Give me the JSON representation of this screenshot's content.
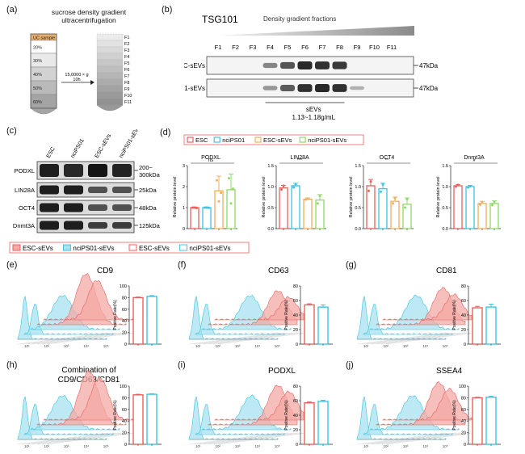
{
  "panels": {
    "a": "(a)",
    "b": "(b)",
    "c": "(c)",
    "d": "(d)",
    "e": "(e)",
    "f": "(f)",
    "g": "(g)",
    "h": "(h)",
    "i": "(i)",
    "j": "(j)"
  },
  "panel_a": {
    "title": "sucrose density gradient ultracentrifugation",
    "title_line1": "sucrose density gradient",
    "title_line2": "ultracentrifugation",
    "layers": [
      {
        "label": "UC  sample",
        "color": "#e8b06a"
      },
      {
        "label": "20%",
        "color": "#ffffff"
      },
      {
        "label": "30%",
        "color": "#e9e9e9"
      },
      {
        "label": "40%",
        "color": "#d2d2d2"
      },
      {
        "label": "50%",
        "color": "#bababa"
      },
      {
        "label": "60%",
        "color": "#a4a4a4"
      }
    ],
    "spin_line1": "15,0000 × g",
    "spin_line2": "10h",
    "fractions": [
      "F1",
      "F2",
      "F3",
      "F4",
      "F5",
      "F6",
      "F7",
      "F8",
      "F9",
      "F10",
      "F11"
    ]
  },
  "panel_b": {
    "protein": "TSG101",
    "gradient_label": "Density gradient fractions",
    "lanes": [
      "F1",
      "F2",
      "F3",
      "F4",
      "F5",
      "F6",
      "F7",
      "F8",
      "F9",
      "F10",
      "F11"
    ],
    "rows": [
      {
        "label": "ESC-sEVs",
        "kda": "47kDa",
        "intensity": [
          0,
          0,
          0,
          0.45,
          0.75,
          1,
          0.95,
          0.9,
          0,
          0,
          0
        ]
      },
      {
        "label": "nciPS01-sEVs",
        "kda": "47kDa",
        "intensity": [
          0,
          0,
          0,
          0.35,
          0.7,
          0.95,
          1,
          0.95,
          0.2,
          0,
          0
        ]
      }
    ],
    "sevs_label": "sEVs",
    "density_label": "1.13~1.18g/mL"
  },
  "panel_c": {
    "lanes": [
      "ESC",
      "nciPS01",
      "ESC-sEVs",
      "nciPS01-sEVs"
    ],
    "rows": [
      {
        "label": "PODXL",
        "kda": "200~\n300kDa",
        "kda1": "200~",
        "kda2": "300kDa"
      },
      {
        "label": "LIN28A",
        "kda": "25kDa"
      },
      {
        "label": "OCT4",
        "kda": "48kDa"
      },
      {
        "label": "Dnmt3A",
        "kda": "125kDa"
      }
    ]
  },
  "legend_d": [
    {
      "name": "ESC",
      "color": "#e8615c"
    },
    {
      "name": "nciPS01",
      "color": "#3ec4e0"
    },
    {
      "name": "ESC-sEVs",
      "color": "#f2ae5a"
    },
    {
      "name": "nciPS01-sEVs",
      "color": "#8fd96a"
    }
  ],
  "legend_e": [
    {
      "name": "ESC-sEVs",
      "color": "#e8615c",
      "fill": "#f4a9a5"
    },
    {
      "name": "nciPS01-sEVs",
      "color": "#3ec4e0",
      "fill": "#a6e2f0"
    },
    {
      "name": "ESC-sEVs",
      "color": "#e8615c",
      "fill": "#ffffff"
    },
    {
      "name": "nciPS01-sEVs",
      "color": "#3ec4e0",
      "fill": "#ffffff"
    }
  ],
  "chart_data": [
    {
      "type": "bar",
      "panel": "d",
      "title": "PODXL",
      "annotation": "ns",
      "ylabel": "Relative protein level",
      "ylim": [
        0,
        3
      ],
      "yticks": [
        "0",
        "1",
        "2",
        "3"
      ],
      "categories": [
        "ESC",
        "nciPS01",
        "ESC-sEVs",
        "nciPS01-sEVs"
      ],
      "values": [
        1.0,
        1.0,
        1.8,
        1.85
      ],
      "errors": [
        0.03,
        0.03,
        0.7,
        0.75
      ],
      "points": [
        [
          1,
          1,
          0.98
        ],
        [
          1,
          1,
          0.99
        ],
        [
          2.3,
          1.3,
          1.7
        ],
        [
          2.4,
          1.2,
          1.9
        ]
      ]
    },
    {
      "type": "bar",
      "panel": "d",
      "title": "LIN28A",
      "annotation": "***",
      "ylabel": "Relative protein level",
      "ylim": [
        0,
        1.5
      ],
      "yticks": [
        "0.0",
        "0.5",
        "1.0",
        "1.5"
      ],
      "categories": [
        "ESC",
        "nciPS01",
        "ESC-sEVs",
        "nciPS01-sEVs"
      ],
      "values": [
        0.97,
        1.02,
        0.7,
        0.68
      ],
      "errors": [
        0.06,
        0.06,
        0.03,
        0.13
      ],
      "points": [
        [
          0.93,
          1.02
        ],
        [
          0.98,
          1.05
        ],
        [
          0.69,
          0.71
        ],
        [
          0.6,
          0.78
        ]
      ]
    },
    {
      "type": "bar",
      "panel": "d",
      "title": "OCT4",
      "annotation": "**",
      "ylabel": "Relative protein level",
      "ylim": [
        0,
        1.5
      ],
      "yticks": [
        "0.0",
        "0.5",
        "1.0",
        "1.5"
      ],
      "categories": [
        "ESC",
        "nciPS01",
        "ESC-sEVs",
        "nciPS01-sEVs"
      ],
      "values": [
        1.02,
        0.95,
        0.65,
        0.58
      ],
      "errors": [
        0.15,
        0.13,
        0.1,
        0.15
      ],
      "points": [
        [
          0.9,
          1.12
        ],
        [
          0.88,
          1.05
        ],
        [
          0.6,
          0.72
        ],
        [
          0.5,
          0.7
        ]
      ]
    },
    {
      "type": "bar",
      "panel": "d",
      "title": "Dnmt3A",
      "annotation": "#",
      "ylabel": "Relative protein level",
      "ylim": [
        0,
        1.5
      ],
      "yticks": [
        "0.0",
        "0.5",
        "1.0",
        "1.5"
      ],
      "categories": [
        "ESC",
        "nciPS01",
        "ESC-sEVs",
        "nciPS01-sEVs"
      ],
      "values": [
        1.02,
        1.0,
        0.6,
        0.6
      ],
      "errors": [
        0.03,
        0.03,
        0.05,
        0.06
      ],
      "points": [
        [
          1.0,
          1.04
        ],
        [
          0.98,
          1.01
        ],
        [
          0.57,
          0.63
        ],
        [
          0.56,
          0.64
        ]
      ]
    },
    {
      "type": "bar",
      "panel": "e",
      "ylabel": "Positive Rate(%)",
      "ylim": [
        0,
        100
      ],
      "yticks": [
        "0",
        "20",
        "40",
        "60",
        "80",
        "100"
      ],
      "categories": [
        "ESC-sEVs",
        "nciPS01-sEVs"
      ],
      "values": [
        80,
        82
      ],
      "errors": [
        1,
        1.5
      ]
    },
    {
      "type": "bar",
      "panel": "f",
      "ylabel": "Positive Rate(%)",
      "ylim": [
        0,
        80
      ],
      "yticks": [
        "0",
        "20",
        "40",
        "60",
        "80"
      ],
      "categories": [
        "ESC-sEVs",
        "nciPS01-sEVs"
      ],
      "values": [
        54,
        51
      ],
      "errors": [
        1.5,
        3
      ]
    },
    {
      "type": "bar",
      "panel": "g",
      "ylabel": "Positive Rate(%)",
      "ylim": [
        0,
        80
      ],
      "yticks": [
        "0",
        "20",
        "40",
        "60",
        "80"
      ],
      "categories": [
        "ESC-sEVs",
        "nciPS01-sEVs"
      ],
      "values": [
        50,
        51
      ],
      "errors": [
        2,
        4
      ]
    },
    {
      "type": "bar",
      "panel": "h",
      "ylabel": "Positive Rate(%)",
      "ylim": [
        0,
        100
      ],
      "yticks": [
        "0",
        "20",
        "40",
        "60",
        "80",
        "100"
      ],
      "categories": [
        "ESC-sEVs",
        "nciPS01-sEVs"
      ],
      "values": [
        85,
        86
      ],
      "errors": [
        1,
        1
      ]
    },
    {
      "type": "bar",
      "panel": "i",
      "ylabel": "Positive Rate(%)",
      "ylim": [
        0,
        80
      ],
      "yticks": [
        "0",
        "20",
        "40",
        "60",
        "80"
      ],
      "categories": [
        "ESC-sEVs",
        "nciPS01-sEVs"
      ],
      "values": [
        57,
        59
      ],
      "errors": [
        1.5,
        1.5
      ]
    },
    {
      "type": "bar",
      "panel": "j",
      "ylabel": "Positive Rate(%)",
      "ylim": [
        0,
        100
      ],
      "yticks": [
        "0",
        "20",
        "40",
        "60",
        "80",
        "100"
      ],
      "categories": [
        "ESC-sEVs",
        "nciPS01-sEVs"
      ],
      "values": [
        80,
        81
      ],
      "errors": [
        1,
        1.5
      ]
    }
  ],
  "flow_panels": [
    {
      "panel": "e",
      "title": "CD9",
      "title1": "CD9",
      "ticks": [
        "10¹",
        "10²",
        "10³",
        "10⁴",
        "10⁵"
      ]
    },
    {
      "panel": "f",
      "title": "CD63",
      "title1": "CD63",
      "ticks": [
        "10¹",
        "10²",
        "10³",
        "10⁴",
        "10⁵"
      ]
    },
    {
      "panel": "g",
      "title": "CD81",
      "title1": "CD81",
      "ticks": [
        "10¹",
        "10²",
        "10³",
        "10⁴",
        "10⁵"
      ]
    },
    {
      "panel": "h",
      "title": "Combination of CD9/CD63/CD81",
      "title1": "Combination of",
      "title2": "CD9/CD63/CD81",
      "ticks": [
        "10¹",
        "10²",
        "10³",
        "10⁴",
        "10⁵"
      ]
    },
    {
      "panel": "i",
      "title": "PODXL",
      "title1": "PODXL",
      "ticks": [
        "10¹",
        "10²",
        "10³",
        "10⁴",
        "10⁵"
      ]
    },
    {
      "panel": "j",
      "title": "SSEA4",
      "title1": "SSEA4",
      "ticks": [
        "10¹",
        "10²",
        "10³",
        "10⁴",
        "10⁵"
      ]
    }
  ]
}
